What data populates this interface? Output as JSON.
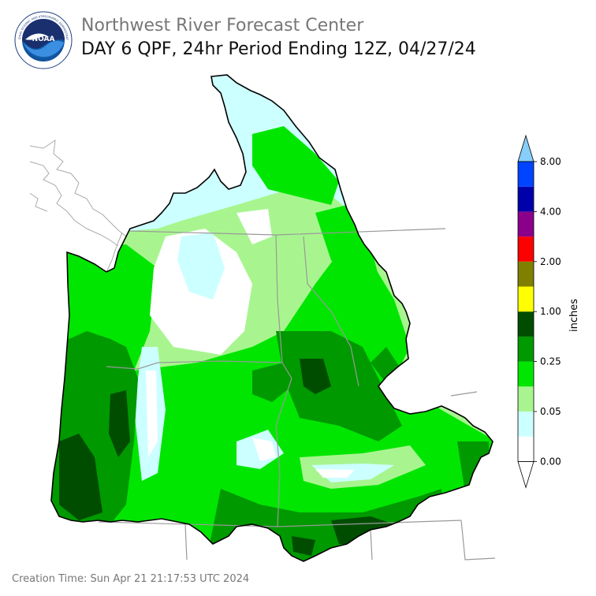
{
  "header": {
    "org_title": "Northwest River Forecast Center",
    "product_title": "DAY 6 QPF, 24hr Period Ending 12Z, 04/27/24"
  },
  "logo": {
    "center_text": "NOAA",
    "ring_text": "NATIONAL OCEANIC AND ATMOSPHERIC ADMINISTRATION",
    "ring_text_bottom": "U.S. DEPARTMENT OF COMMERCE"
  },
  "legend": {
    "unit_label": "inches",
    "tick_labels": [
      "0.00",
      "0.05",
      "0.25",
      "1.00",
      "2.00",
      "4.00",
      "8.00"
    ],
    "bins": [
      {
        "color": "#ffffff"
      },
      {
        "color": "#ccffff"
      },
      {
        "color": "#a8f590"
      },
      {
        "color": "#00e600"
      },
      {
        "color": "#009900"
      },
      {
        "color": "#004d00"
      },
      {
        "color": "#ffff00"
      },
      {
        "color": "#808000"
      },
      {
        "color": "#ff0000"
      },
      {
        "color": "#8b008b"
      },
      {
        "color": "#0000aa"
      },
      {
        "color": "#0044ff"
      }
    ],
    "under_color": "#ffffff",
    "over_color": "#87cefa"
  },
  "footer": {
    "creation_time": "Creation Time: Sun Apr 21 21:17:53 UTC 2024"
  }
}
